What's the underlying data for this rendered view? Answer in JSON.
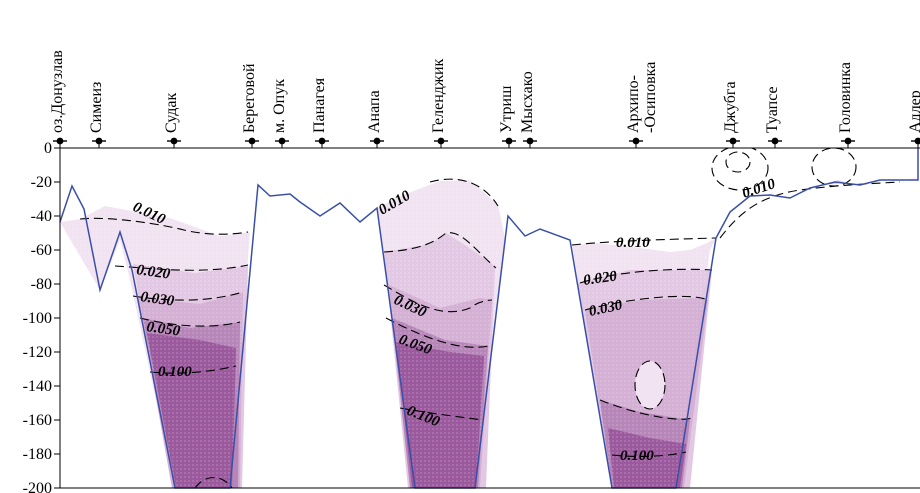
{
  "chart_data": {
    "type": "area",
    "title": "",
    "xlabel": "",
    "ylabel": "",
    "ylim": [
      -200,
      0
    ],
    "y_ticks": [
      0,
      -20,
      -40,
      -60,
      -80,
      -100,
      -120,
      -140,
      -160,
      -180,
      -200
    ],
    "y_tick_labels": [
      "0",
      "-20",
      "-40",
      "-60",
      "-80",
      "-100",
      "-120",
      "-140",
      "-160",
      "-180",
      "-200"
    ],
    "stations": [
      "оз.Донузлав",
      "Симеиз",
      "Судак",
      "Береговой",
      "м. Опук",
      "Панагея",
      "Анапа",
      "Геленджик",
      "Утриш",
      "Мысхако",
      "Архипо-\n-Осиповка",
      "Джубга",
      "Туапсе",
      "Головинка",
      "Адлер"
    ],
    "isoline_labels": [
      "0.010",
      "0.020",
      "0.030",
      "0.050",
      "0.100",
      "0.010",
      "0.030",
      "0.050",
      "0.100",
      "0.010",
      "0.020",
      "0.030",
      "0.100",
      "0.010"
    ],
    "isoline_levels": [
      0.01,
      0.02,
      0.03,
      0.05,
      0.1
    ],
    "fill_levels": [
      {
        "level": 0.01,
        "color": "#f1e3f1"
      },
      {
        "level": 0.02,
        "color": "#e3c8e4"
      },
      {
        "level": 0.03,
        "color": "#cfa5d0"
      },
      {
        "level": 0.05,
        "color": "#b786b9"
      },
      {
        "level": 0.1,
        "color": "#9b5a9d"
      }
    ],
    "bottom_profile_color": "#3a4fa8",
    "grid": false
  }
}
